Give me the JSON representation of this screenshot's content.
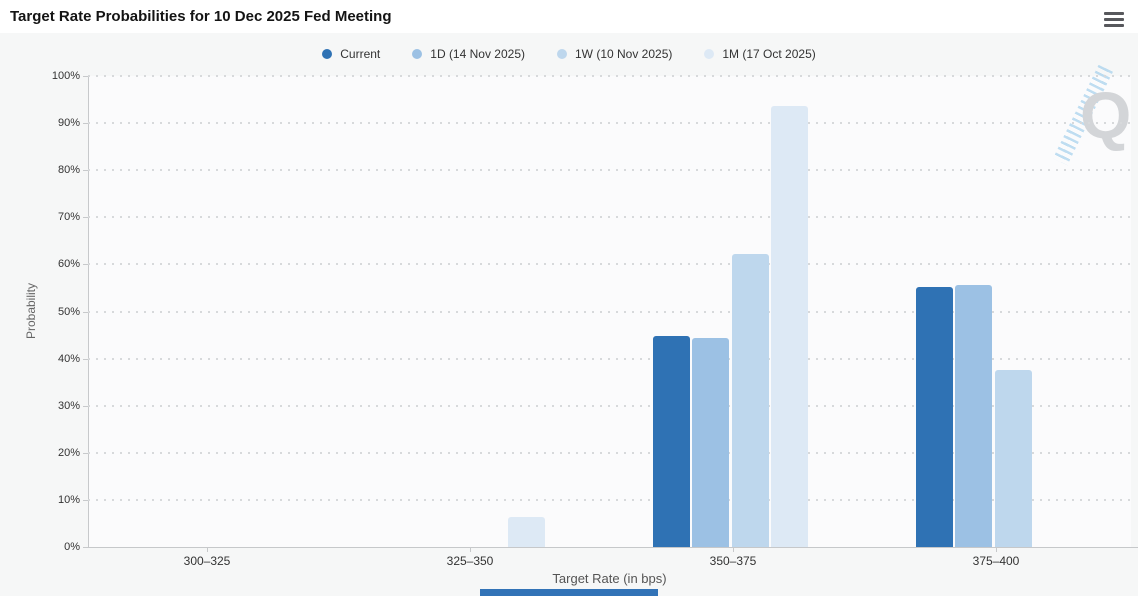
{
  "header": {
    "title": "Target Rate Probabilities for 10 Dec 2025 Fed Meeting"
  },
  "menu": {
    "icon": "hamburger-icon"
  },
  "chart_data": {
    "type": "bar",
    "title": "Target Rate Probabilities for 10 Dec 2025 Fed Meeting",
    "xlabel": "Target Rate (in bps)",
    "ylabel": "Probability",
    "ylim": [
      0,
      100
    ],
    "ytick_step": 10,
    "yticks": [
      "0%",
      "10%",
      "20%",
      "30%",
      "40%",
      "50%",
      "60%",
      "70%",
      "80%",
      "90%",
      "100%"
    ],
    "grid": "horizontal-dotted",
    "legend_position": "top-center",
    "categories": [
      "300–325",
      "325–350",
      "350–375",
      "375–400"
    ],
    "series": [
      {
        "name": "Current",
        "color": "#2f72b4",
        "values": [
          0,
          0,
          44.7,
          55.2
        ]
      },
      {
        "name": "1D (14 Nov 2025)",
        "color": "#9cc1e4",
        "values": [
          0,
          0,
          44.3,
          55.6
        ]
      },
      {
        "name": "1W (10 Nov 2025)",
        "color": "#bed7ed",
        "values": [
          0,
          0,
          62.2,
          37.6
        ]
      },
      {
        "name": "1M (17 Oct 2025)",
        "color": "#dde9f5",
        "values": [
          0,
          6.3,
          93.7,
          0
        ]
      }
    ]
  },
  "watermark": {
    "letter": "Q",
    "color": "#d3d5d8",
    "stripe_color": "#8dc4e8"
  },
  "colors": {
    "titlebar_bg": "#ffffff",
    "page_bg": "#f6f7f7",
    "axis_line": "#c6c8ca",
    "gridline": "#d7d9db",
    "bottom_partial_bar": "#3273b7"
  }
}
